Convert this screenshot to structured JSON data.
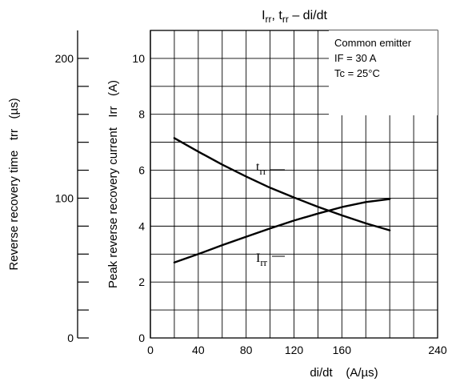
{
  "chart_data": {
    "type": "line",
    "title": "Irr, trr – di/dt",
    "title_parts": {
      "main1": "I",
      "sub1": "rr",
      "mid": ", t",
      "sub2": "rr",
      "tail": " – di/dt"
    },
    "xlabel": "di/dt    (A/µs)",
    "xlim": [
      0,
      240
    ],
    "x_ticks": [
      "0",
      "40",
      "80",
      "120",
      "160",
      "240"
    ],
    "x_tick_values": [
      0,
      40,
      80,
      120,
      160,
      240
    ],
    "y_left_inner": {
      "label": "Peak reverse recovery current   Irr   (A)",
      "ylim": [
        0,
        11
      ],
      "ticks": [
        "0",
        "2",
        "4",
        "6",
        "8",
        "10"
      ],
      "tick_values": [
        0,
        2,
        4,
        6,
        8,
        10
      ]
    },
    "y_left_outer": {
      "label": "Reverse recovery time   trr   (µs)",
      "ylim": [
        0,
        220
      ],
      "ticks": [
        "0",
        "100",
        "200"
      ],
      "tick_values": [
        0,
        100,
        200
      ]
    },
    "grid": true,
    "annotation": {
      "line1": "Common emitter",
      "line2": "IF = 30 A",
      "line3": "Tc = 25°C"
    },
    "series": [
      {
        "name": "trr",
        "label_main": "t",
        "label_sub": "rr",
        "axis": "outer",
        "x": [
          20,
          40,
          60,
          80,
          100,
          120,
          140,
          160,
          180,
          200
        ],
        "y": [
          143.0,
          133.3,
          124.0,
          115.5,
          107.5,
          100.5,
          93.8,
          87.7,
          82.0,
          77.0
        ]
      },
      {
        "name": "Irr",
        "label_main": "I",
        "label_sub": "rr",
        "axis": "inner",
        "x": [
          20,
          40,
          60,
          80,
          100,
          120,
          140,
          160,
          180,
          200
        ],
        "y": [
          2.7,
          3.0,
          3.32,
          3.62,
          3.92,
          4.2,
          4.45,
          4.68,
          4.86,
          4.97
        ]
      }
    ],
    "colors": {
      "line": "#000000",
      "grid": "#000000",
      "background": "#ffffff"
    }
  }
}
